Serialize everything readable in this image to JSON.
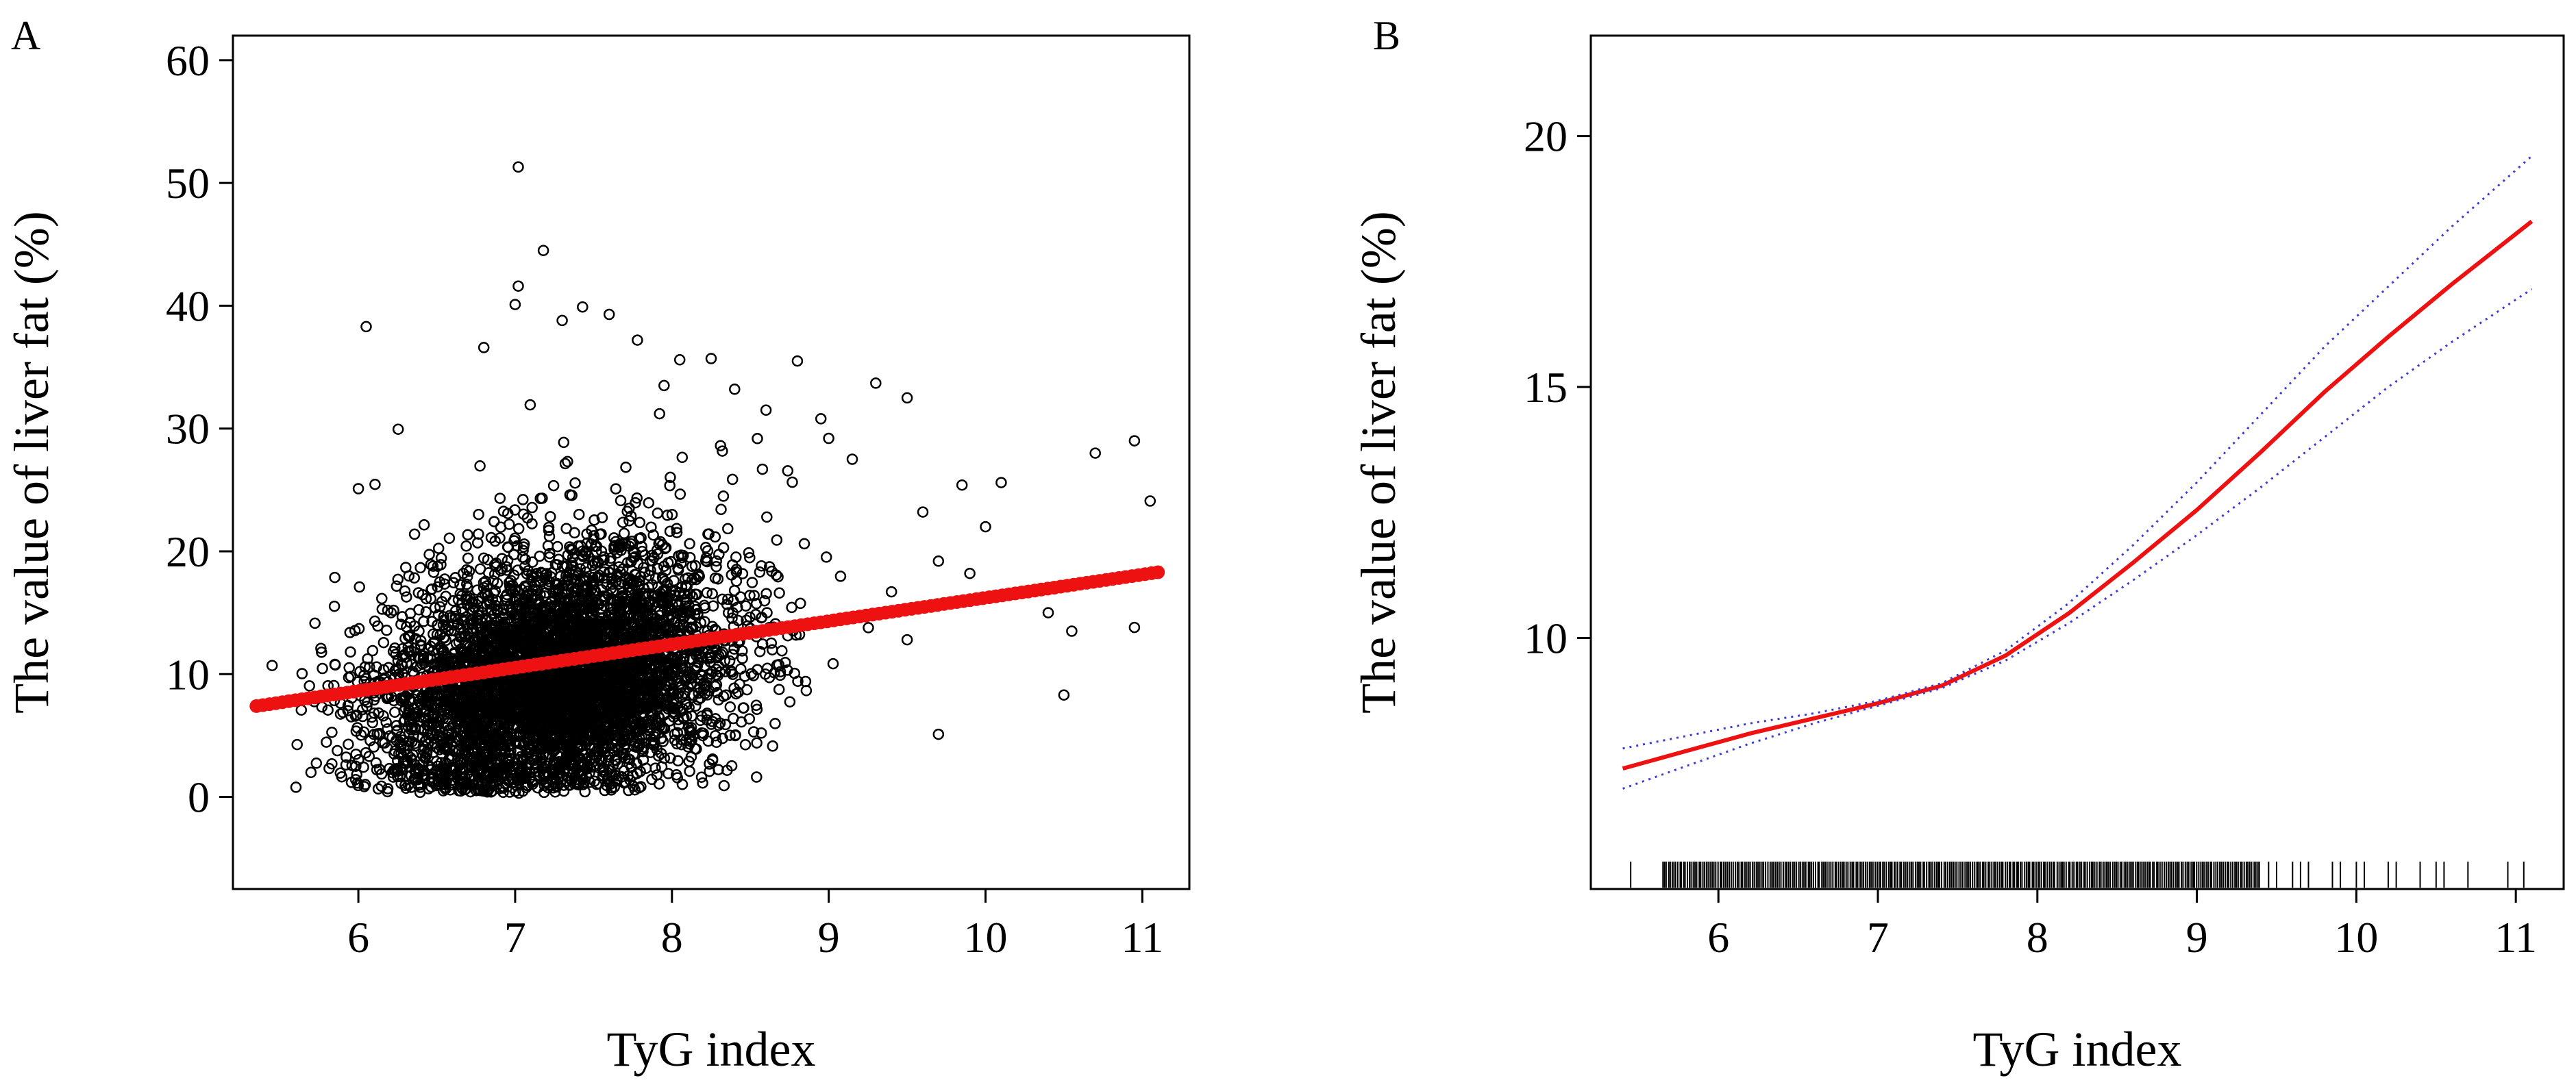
{
  "colors": {
    "points": "#000000",
    "fitted": "#ee1111",
    "smooth_line": "#ee1111",
    "ci_line": "#3b3bd6",
    "rug": "#000000"
  },
  "chart_data": [
    {
      "panel": "A",
      "type": "scatter",
      "title": "",
      "xlabel": "TyG index",
      "ylabel": "The value of liver fat (%)",
      "xlim": [
        5.2,
        11.3
      ],
      "ylim": [
        -7.5,
        62
      ],
      "xticks": [
        6,
        7,
        8,
        9,
        10,
        11
      ],
      "yticks": [
        0,
        10,
        20,
        30,
        40,
        50,
        60
      ],
      "grid": false,
      "legend": "none",
      "series": [
        {
          "marker": "open-circle",
          "points_description_count": 5200,
          "distribution": {
            "x_center": 7.25,
            "x_sd": 0.55,
            "y_min": 0.3,
            "y_max": 51.5
          },
          "outliers": [
            [
              7.02,
              51.3
            ],
            [
              7.18,
              44.5
            ],
            [
              7.02,
              41.6
            ],
            [
              7.0,
              40.1
            ],
            [
              7.43,
              39.9
            ],
            [
              7.6,
              39.3
            ],
            [
              6.05,
              38.3
            ],
            [
              7.3,
              38.8
            ],
            [
              6.8,
              36.6
            ],
            [
              7.78,
              37.2
            ],
            [
              8.25,
              35.7
            ],
            [
              8.05,
              35.6
            ],
            [
              8.8,
              35.5
            ],
            [
              9.3,
              33.7
            ],
            [
              9.5,
              32.5
            ],
            [
              10.7,
              28.0
            ],
            [
              10.95,
              29.0
            ],
            [
              11.05,
              24.1
            ],
            [
              10.1,
              25.6
            ],
            [
              9.85,
              25.4
            ],
            [
              6.0,
              25.1
            ],
            [
              10.95,
              13.8
            ],
            [
              10.5,
              8.3
            ],
            [
              9.7,
              5.1
            ],
            [
              5.45,
              10.7
            ],
            [
              10.55,
              13.5
            ],
            [
              9.7,
              19.2
            ],
            [
              9.6,
              23.2
            ],
            [
              9.4,
              16.7
            ],
            [
              9.5,
              12.8
            ],
            [
              9.9,
              18.2
            ],
            [
              10.0,
              22.0
            ],
            [
              10.2,
              16.6
            ],
            [
              10.4,
              15.0
            ],
            [
              9.15,
              27.5
            ],
            [
              9.0,
              29.2
            ],
            [
              8.95,
              30.8
            ],
            [
              8.6,
              31.5
            ],
            [
              8.4,
              33.2
            ],
            [
              7.95,
              33.5
            ]
          ]
        },
        {
          "name": "",
          "marker": "filled-dot",
          "fitted_line": {
            "x0": 5.35,
            "y0": 7.4,
            "x1": 11.1,
            "y1": 18.3
          }
        }
      ]
    },
    {
      "panel": "B",
      "type": "line",
      "title": "",
      "xlabel": "TyG index",
      "ylabel": "The value of liver fat (%)",
      "xlim": [
        5.2,
        11.3
      ],
      "ylim": [
        5.0,
        22.0
      ],
      "xticks": [
        6,
        7,
        8,
        9,
        10,
        11
      ],
      "yticks": [
        10,
        15,
        20
      ],
      "grid": false,
      "legend": "none",
      "series": [
        {
          "role": "fit",
          "style": "solid",
          "x": [
            5.4,
            5.8,
            6.2,
            6.6,
            7.0,
            7.4,
            7.8,
            8.2,
            8.6,
            9.0,
            9.4,
            9.8,
            10.2,
            10.6,
            11.1
          ],
          "y": [
            7.4,
            7.75,
            8.1,
            8.4,
            8.7,
            9.05,
            9.65,
            10.5,
            11.5,
            12.55,
            13.7,
            14.9,
            16.0,
            17.05,
            18.3
          ]
        },
        {
          "role": "ci-upper",
          "style": "dotted",
          "x": [
            5.4,
            5.8,
            6.2,
            6.6,
            7.0,
            7.4,
            7.8,
            8.2,
            8.6,
            9.0,
            9.4,
            9.8,
            10.2,
            10.6,
            11.1
          ],
          "y": [
            7.8,
            8.05,
            8.3,
            8.5,
            8.75,
            9.1,
            9.75,
            10.7,
            11.85,
            13.1,
            14.45,
            15.8,
            17.0,
            18.2,
            19.6
          ]
        },
        {
          "role": "ci-lower",
          "style": "dotted",
          "x": [
            5.4,
            5.8,
            6.2,
            6.6,
            7.0,
            7.4,
            7.8,
            8.2,
            8.6,
            9.0,
            9.4,
            9.8,
            10.2,
            10.6,
            11.1
          ],
          "y": [
            7.0,
            7.45,
            7.9,
            8.3,
            8.65,
            9.0,
            9.55,
            10.3,
            11.15,
            12.05,
            13.0,
            14.0,
            15.0,
            15.9,
            16.95
          ]
        }
      ],
      "rug": {
        "dense_range": [
          5.65,
          9.4
        ],
        "sparse_x": [
          5.45,
          9.45,
          9.5,
          9.6,
          9.65,
          9.7,
          9.85,
          9.9,
          10.0,
          10.05,
          10.2,
          10.25,
          10.4,
          10.5,
          10.55,
          10.7,
          10.95,
          11.05
        ]
      }
    }
  ]
}
